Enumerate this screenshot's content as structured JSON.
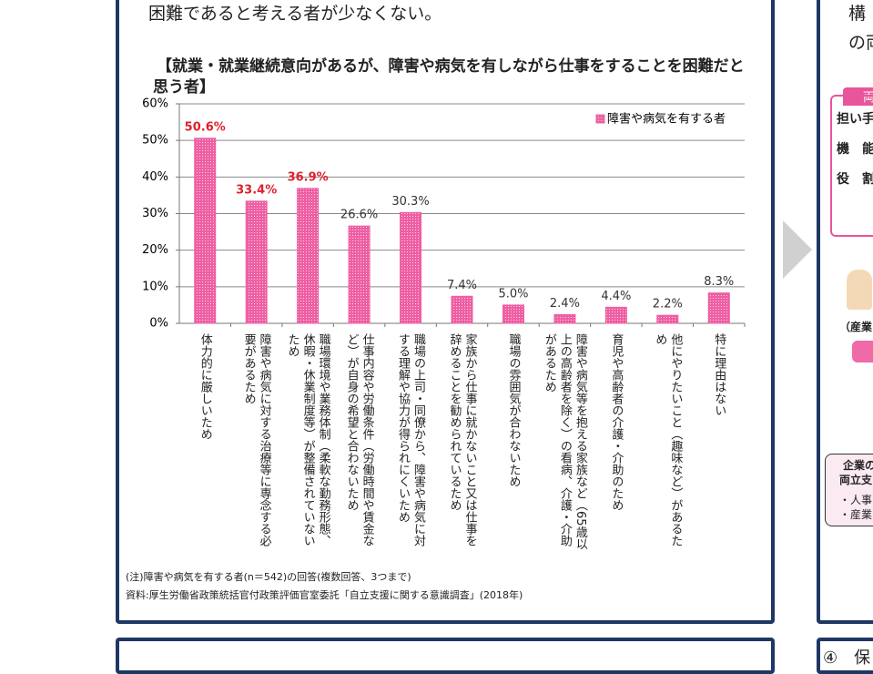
{
  "intro_text": "困難であると考える者が少なくない。",
  "chart_data": {
    "type": "bar",
    "title": "【就業・就業継続意向があるが、障害や病気を有しながら仕事をすることを困難だと思う者】",
    "categories": [
      "体力的に厳しいため",
      "障害や病気に対する治療等に専念する必要があるため",
      "職場環境や業務体制（柔軟な勤務形態、休暇・休業制度等）が整備されていないため",
      "仕事内容や労働条件（労働時間や賃金など）が自身の希望と合わないため",
      "職場の上司・同僚から、障害や病気に対する理解や協力が得られにくいため",
      "家族から仕事に就かないこと又は仕事を辞めることを勧められているため",
      "職場の雰囲気が合わないため",
      "障害や病気等を抱える家族など（65歳以上の高齢者を除く）の看病、介護・介助があるため",
      "育児や高齢者の介護・介助のため",
      "他にやりたいこと（趣味など）があるため",
      "特に理由はない"
    ],
    "series": [
      {
        "name": "障害や病気を有する者",
        "color": "#ee5fa3",
        "values": [
          50.6,
          33.4,
          36.9,
          26.6,
          30.3,
          7.4,
          5.0,
          2.4,
          4.4,
          2.2,
          8.3
        ],
        "value_labels": [
          "50.6%",
          "33.4%",
          "36.9%",
          "26.6%",
          "30.3%",
          "7.4%",
          "5.0%",
          "2.4%",
          "4.4%",
          "2.2%",
          "8.3%"
        ],
        "label_colors": [
          "#e0202b",
          "#e0202b",
          "#e0202b",
          "#333333",
          "#333333",
          "#333333",
          "#333333",
          "#333333",
          "#333333",
          "#333333",
          "#333333"
        ]
      }
    ],
    "ylim": [
      0,
      60
    ],
    "yticks": [
      {
        "value": 0,
        "label": "0%"
      },
      {
        "value": 10,
        "label": "10%"
      },
      {
        "value": 20,
        "label": "20%"
      },
      {
        "value": 30,
        "label": "30%"
      },
      {
        "value": 40,
        "label": "40%"
      },
      {
        "value": 50,
        "label": "50%"
      },
      {
        "value": 60,
        "label": "60%"
      }
    ],
    "grid": true,
    "legend": "upper right"
  },
  "notes": [
    "(注)障害や病気を有する者(n＝542)の回答(複数回答、3つまで)",
    "資料:厚生労働省政策統括官付政策評価官室委託「自立支援に関する意識調査」(2018年)"
  ],
  "side_panel": {
    "lines": [
      "構",
      "の両"
    ],
    "tab": "両",
    "rows": [
      "担い手",
      "機　能",
      "役　割"
    ],
    "person": "（産業",
    "pill": "",
    "box": [
      "企業の",
      "両立支",
      "・人事",
      "・産業"
    ],
    "bottom": "④　保"
  }
}
